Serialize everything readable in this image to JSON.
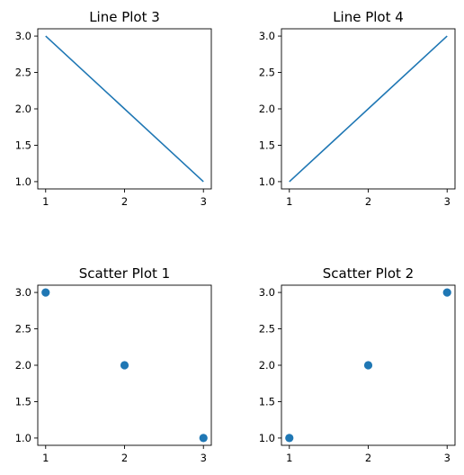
{
  "colors": {
    "series": "#1f77b4",
    "axes": "#000000",
    "background": "#ffffff"
  },
  "chart_data": [
    {
      "type": "line",
      "title": "Line Plot 3",
      "x": [
        1,
        2,
        3
      ],
      "y": [
        3,
        2,
        1
      ],
      "xlim": [
        0.9,
        3.1
      ],
      "ylim": [
        0.9,
        3.1
      ],
      "xticks": [
        1,
        2,
        3
      ],
      "xtick_labels": [
        "1",
        "2",
        "3"
      ],
      "yticks": [
        1.0,
        1.5,
        2.0,
        2.5,
        3.0
      ],
      "ytick_labels": [
        "1.0",
        "1.5",
        "2.0",
        "2.5",
        "3.0"
      ],
      "grid": false
    },
    {
      "type": "line",
      "title": "Line Plot 4",
      "x": [
        1,
        2,
        3
      ],
      "y": [
        1,
        2,
        3
      ],
      "xlim": [
        0.9,
        3.1
      ],
      "ylim": [
        0.9,
        3.1
      ],
      "xticks": [
        1,
        2,
        3
      ],
      "xtick_labels": [
        "1",
        "2",
        "3"
      ],
      "yticks": [
        1.0,
        1.5,
        2.0,
        2.5,
        3.0
      ],
      "ytick_labels": [
        "1.0",
        "1.5",
        "2.0",
        "2.5",
        "3.0"
      ],
      "grid": false
    },
    {
      "type": "scatter",
      "title": "Scatter Plot 1",
      "x": [
        1,
        2,
        3
      ],
      "y": [
        3,
        2,
        1
      ],
      "xlim": [
        0.9,
        3.1
      ],
      "ylim": [
        0.9,
        3.1
      ],
      "xticks": [
        1,
        2,
        3
      ],
      "xtick_labels": [
        "1",
        "2",
        "3"
      ],
      "yticks": [
        1.0,
        1.5,
        2.0,
        2.5,
        3.0
      ],
      "ytick_labels": [
        "1.0",
        "1.5",
        "2.0",
        "2.5",
        "3.0"
      ],
      "grid": false
    },
    {
      "type": "scatter",
      "title": "Scatter Plot 2",
      "x": [
        1,
        2,
        3
      ],
      "y": [
        1,
        2,
        3
      ],
      "xlim": [
        0.9,
        3.1
      ],
      "ylim": [
        0.9,
        3.1
      ],
      "xticks": [
        1,
        2,
        3
      ],
      "xtick_labels": [
        "1",
        "2",
        "3"
      ],
      "yticks": [
        1.0,
        1.5,
        2.0,
        2.5,
        3.0
      ],
      "ytick_labels": [
        "1.0",
        "1.5",
        "2.0",
        "2.5",
        "3.0"
      ],
      "grid": false
    }
  ]
}
